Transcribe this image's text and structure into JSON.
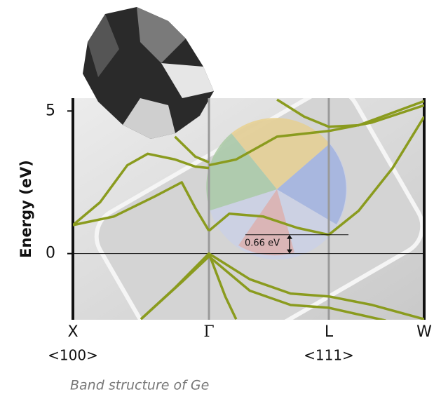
{
  "chart_data": {
    "type": "line",
    "ylabel": "Energy (eV)",
    "caption": "Band structure of Ge",
    "xlim": [
      0,
      2.582
    ],
    "xticks": [
      {
        "value": 0,
        "label": "X"
      },
      {
        "value": 1,
        "label": "Γ"
      },
      {
        "value": 1.881,
        "label": "L"
      },
      {
        "value": 2.582,
        "label": "W"
      }
    ],
    "xtick_sublabels": [
      "<100>",
      null,
      "<111>",
      null
    ],
    "ylim": [
      -2.32,
      5.45
    ],
    "yticks": [
      0,
      5
    ],
    "annotation": {
      "label": "0.66 eV",
      "value": 0.66
    },
    "series": [
      {
        "color": "#8a9b1e",
        "x": [
          0,
          0.2,
          0.4,
          0.55,
          0.75,
          0.9,
          1.0
        ],
        "values": [
          1.0,
          1.8,
          3.1,
          3.5,
          3.3,
          3.05,
          3.0
        ]
      },
      {
        "color": "#8a9b1e",
        "x": [
          0,
          0.3,
          0.6,
          0.8,
          0.9,
          1.0
        ],
        "values": [
          1.0,
          1.3,
          2.0,
          2.5,
          1.6,
          0.8
        ]
      },
      {
        "color": "#8a9b1e",
        "x": [
          1.0,
          1.15,
          1.4,
          1.65,
          1.881
        ],
        "values": [
          0.8,
          1.4,
          1.3,
          0.9,
          0.66
        ]
      },
      {
        "color": "#8a9b1e",
        "x": [
          1.881,
          2.1,
          2.35,
          2.582
        ],
        "values": [
          0.66,
          1.5,
          3.0,
          4.8
        ]
      },
      {
        "color": "#8a9b1e",
        "x": [
          1.0,
          1.2,
          1.5,
          1.881,
          2.2,
          2.582
        ],
        "values": [
          3.1,
          3.3,
          4.1,
          4.3,
          4.6,
          5.2
        ]
      },
      {
        "color": "#8a9b1e",
        "x": [
          0.75,
          0.9,
          1.0
        ],
        "values": [
          4.1,
          3.4,
          3.2
        ]
      },
      {
        "color": "#8a9b1e",
        "x": [
          1.5,
          1.7,
          1.881,
          2.1,
          2.582
        ],
        "values": [
          5.4,
          4.8,
          4.45,
          4.5,
          5.35
        ]
      },
      {
        "color": "#8a9b1e",
        "x": [
          0.5,
          0.75,
          1.0,
          1.3,
          1.6,
          1.881,
          2.2,
          2.582
        ],
        "values": [
          -2.3,
          -1.2,
          0,
          -0.9,
          -1.4,
          -1.5,
          -1.8,
          -2.3
        ]
      },
      {
        "color": "#8a9b1e",
        "x": [
          0.5,
          0.8,
          1.0,
          1.3,
          1.6,
          1.881,
          2.3
        ],
        "values": [
          -2.3,
          -1.0,
          -0.1,
          -1.3,
          -1.8,
          -1.9,
          -2.35
        ]
      },
      {
        "color": "#8a9b1e",
        "x": [
          1.0,
          1.12,
          1.2
        ],
        "values": [
          0,
          -1.5,
          -2.3
        ]
      }
    ]
  }
}
